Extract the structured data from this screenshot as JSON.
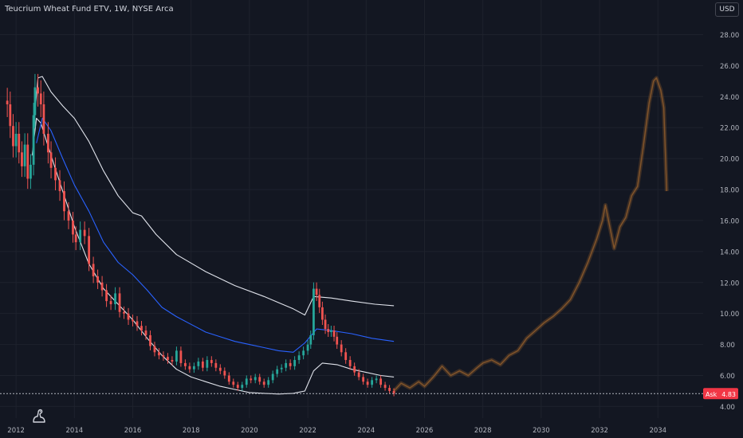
{
  "header": {
    "title": "Teucrium Wheat Fund ETV, 1W, NYSE Arca",
    "currency": "USD"
  },
  "colors": {
    "background": "#131722",
    "grid": "#1e222d",
    "axis_text": "#b2b5be",
    "up": "#26a69a",
    "down": "#ef5350",
    "white_ma": "#e0e3eb",
    "blue_ma": "#2962ff",
    "projection": "#8b5a2b",
    "price_line": "#b2b5be",
    "ask": "#f23645",
    "ask_label_text": "#ffffff"
  },
  "logo": {
    "icon": "tradingview-dino-icon"
  },
  "chart_data": {
    "type": "line",
    "title": "Teucrium Wheat Fund ETV, 1W, NYSE Arca",
    "xlabel": "",
    "ylabel": "",
    "xlim": [
      2011.45,
      2035.55
    ],
    "ylim": [
      3.25,
      29.0
    ],
    "x_ticks": [
      2012,
      2014,
      2016,
      2018,
      2020,
      2022,
      2024,
      2026,
      2028,
      2030,
      2032,
      2034
    ],
    "x_tick_labels": [
      "2012",
      "2014",
      "2016",
      "2018",
      "2020",
      "2022",
      "2024",
      "2026",
      "2028",
      "2030",
      "2032",
      "2034"
    ],
    "y_ticks": [
      4,
      6,
      8,
      10,
      12,
      14,
      16,
      18,
      20,
      22,
      24,
      26,
      28
    ],
    "y_tick_labels": [
      "4.00",
      "6.00",
      "8.00",
      "10.00",
      "12.00",
      "14.00",
      "16.00",
      "18.00",
      "20.00",
      "22.00",
      "24.00",
      "26.00",
      "28.00"
    ],
    "grid": true,
    "ask": {
      "label": "Ask",
      "value": 4.83,
      "value_label": "4.83"
    },
    "price_line": 4.83,
    "series": [
      {
        "style": "candles",
        "points": [
          [
            2011.7,
            23.5
          ],
          [
            2011.8,
            22.1
          ],
          [
            2011.9,
            20.8
          ],
          [
            2012.0,
            21.6
          ],
          [
            2012.1,
            20.4
          ],
          [
            2012.2,
            19.5
          ],
          [
            2012.3,
            20.9
          ],
          [
            2012.4,
            18.7
          ],
          [
            2012.5,
            19.6
          ],
          [
            2012.6,
            22.8
          ],
          [
            2012.65,
            24.6
          ],
          [
            2012.75,
            24.2
          ],
          [
            2012.85,
            23.5
          ],
          [
            2012.95,
            21.6
          ],
          [
            2013.1,
            20.4
          ],
          [
            2013.2,
            19.4
          ],
          [
            2013.35,
            18.6
          ],
          [
            2013.5,
            17.9
          ],
          [
            2013.65,
            16.6
          ],
          [
            2013.8,
            16.0
          ],
          [
            2013.95,
            15.1
          ],
          [
            2014.05,
            14.6
          ],
          [
            2014.2,
            15.4
          ],
          [
            2014.35,
            15.0
          ],
          [
            2014.5,
            13.2
          ],
          [
            2014.65,
            12.4
          ],
          [
            2014.8,
            12.0
          ],
          [
            2014.95,
            11.5
          ],
          [
            2015.1,
            10.8
          ],
          [
            2015.25,
            10.6
          ],
          [
            2015.4,
            11.3
          ],
          [
            2015.55,
            10.1
          ],
          [
            2015.7,
            10.0
          ],
          [
            2015.85,
            9.6
          ],
          [
            2016.0,
            9.5
          ],
          [
            2016.15,
            9.2
          ],
          [
            2016.3,
            8.9
          ],
          [
            2016.45,
            8.6
          ],
          [
            2016.6,
            7.9
          ],
          [
            2016.75,
            7.5
          ],
          [
            2016.9,
            7.3
          ],
          [
            2017.05,
            7.2
          ],
          [
            2017.2,
            7.0
          ],
          [
            2017.35,
            6.9
          ],
          [
            2017.5,
            7.6
          ],
          [
            2017.65,
            6.8
          ],
          [
            2017.8,
            6.6
          ],
          [
            2017.95,
            6.4
          ],
          [
            2018.1,
            6.6
          ],
          [
            2018.25,
            6.9
          ],
          [
            2018.4,
            6.5
          ],
          [
            2018.55,
            7.0
          ],
          [
            2018.7,
            6.8
          ],
          [
            2018.85,
            6.5
          ],
          [
            2019.0,
            6.3
          ],
          [
            2019.15,
            6.0
          ],
          [
            2019.3,
            5.6
          ],
          [
            2019.45,
            5.4
          ],
          [
            2019.6,
            5.2
          ],
          [
            2019.75,
            5.4
          ],
          [
            2019.9,
            5.8
          ],
          [
            2020.05,
            5.7
          ],
          [
            2020.2,
            5.9
          ],
          [
            2020.35,
            5.6
          ],
          [
            2020.5,
            5.4
          ],
          [
            2020.65,
            5.7
          ],
          [
            2020.8,
            6.1
          ],
          [
            2020.95,
            6.4
          ],
          [
            2021.1,
            6.5
          ],
          [
            2021.25,
            6.8
          ],
          [
            2021.4,
            6.6
          ],
          [
            2021.55,
            7.0
          ],
          [
            2021.7,
            7.3
          ],
          [
            2021.85,
            7.6
          ],
          [
            2022.0,
            8.0
          ],
          [
            2022.1,
            8.6
          ],
          [
            2022.2,
            11.6
          ],
          [
            2022.3,
            11.2
          ],
          [
            2022.4,
            10.4
          ],
          [
            2022.5,
            9.6
          ],
          [
            2022.6,
            9.0
          ],
          [
            2022.7,
            8.8
          ],
          [
            2022.8,
            8.9
          ],
          [
            2022.9,
            8.5
          ],
          [
            2023.0,
            8.0
          ],
          [
            2023.15,
            7.5
          ],
          [
            2023.3,
            7.0
          ],
          [
            2023.45,
            6.6
          ],
          [
            2023.6,
            6.2
          ],
          [
            2023.75,
            5.9
          ],
          [
            2023.9,
            5.6
          ],
          [
            2024.05,
            5.4
          ],
          [
            2024.2,
            5.7
          ],
          [
            2024.35,
            5.8
          ],
          [
            2024.5,
            5.4
          ],
          [
            2024.65,
            5.2
          ],
          [
            2024.8,
            5.0
          ],
          [
            2024.95,
            4.83
          ]
        ]
      },
      {
        "style": "white_ma",
        "points": [
          [
            2012.6,
            22.0
          ],
          [
            2012.75,
            25.2
          ],
          [
            2012.9,
            25.3
          ],
          [
            2013.2,
            24.3
          ],
          [
            2013.6,
            23.4
          ],
          [
            2014.0,
            22.6
          ],
          [
            2014.5,
            21.1
          ],
          [
            2015.0,
            19.2
          ],
          [
            2015.5,
            17.6
          ],
          [
            2016.0,
            16.5
          ],
          [
            2016.3,
            16.3
          ],
          [
            2016.8,
            15.1
          ],
          [
            2017.5,
            13.8
          ],
          [
            2018.5,
            12.7
          ],
          [
            2019.5,
            11.8
          ],
          [
            2020.5,
            11.1
          ],
          [
            2021.5,
            10.3
          ],
          [
            2021.9,
            9.9
          ],
          [
            2022.2,
            11.1
          ],
          [
            2022.8,
            11.0
          ],
          [
            2023.5,
            10.8
          ],
          [
            2024.3,
            10.6
          ],
          [
            2024.95,
            10.5
          ]
        ]
      },
      {
        "style": "blue_ma",
        "points": [
          [
            2012.7,
            21.0
          ],
          [
            2012.9,
            22.6
          ],
          [
            2013.2,
            21.8
          ],
          [
            2013.6,
            20.0
          ],
          [
            2014.0,
            18.3
          ],
          [
            2014.5,
            16.6
          ],
          [
            2015.0,
            14.6
          ],
          [
            2015.5,
            13.3
          ],
          [
            2016.0,
            12.5
          ],
          [
            2016.5,
            11.5
          ],
          [
            2017.0,
            10.4
          ],
          [
            2017.5,
            9.8
          ],
          [
            2018.0,
            9.3
          ],
          [
            2018.5,
            8.8
          ],
          [
            2019.0,
            8.5
          ],
          [
            2019.5,
            8.2
          ],
          [
            2020.0,
            8.0
          ],
          [
            2020.5,
            7.8
          ],
          [
            2021.0,
            7.6
          ],
          [
            2021.5,
            7.5
          ],
          [
            2021.9,
            8.1
          ],
          [
            2022.3,
            9.0
          ],
          [
            2022.8,
            8.9
          ],
          [
            2023.5,
            8.7
          ],
          [
            2024.2,
            8.4
          ],
          [
            2024.95,
            8.2
          ]
        ]
      },
      {
        "style": "white_band_lower",
        "points": [
          [
            2012.55,
            20.2
          ],
          [
            2012.7,
            22.6
          ],
          [
            2012.85,
            22.3
          ],
          [
            2013.2,
            20.2
          ],
          [
            2013.6,
            17.9
          ],
          [
            2014.0,
            15.6
          ],
          [
            2014.5,
            13.2
          ],
          [
            2015.0,
            11.6
          ],
          [
            2015.5,
            10.6
          ],
          [
            2016.0,
            9.6
          ],
          [
            2016.5,
            8.4
          ],
          [
            2017.0,
            7.3
          ],
          [
            2017.5,
            6.4
          ],
          [
            2018.0,
            5.9
          ],
          [
            2018.5,
            5.6
          ],
          [
            2019.0,
            5.3
          ],
          [
            2019.5,
            5.1
          ],
          [
            2020.0,
            4.9
          ],
          [
            2020.5,
            4.85
          ],
          [
            2021.0,
            4.8
          ],
          [
            2021.5,
            4.85
          ],
          [
            2021.9,
            5.0
          ],
          [
            2022.2,
            6.3
          ],
          [
            2022.5,
            6.8
          ],
          [
            2023.0,
            6.7
          ],
          [
            2023.5,
            6.4
          ],
          [
            2024.0,
            6.2
          ],
          [
            2024.5,
            6.0
          ],
          [
            2024.95,
            5.9
          ]
        ]
      },
      {
        "style": "projection",
        "points": [
          [
            2024.95,
            5.0
          ],
          [
            2025.2,
            5.5
          ],
          [
            2025.5,
            5.2
          ],
          [
            2025.8,
            5.6
          ],
          [
            2026.0,
            5.3
          ],
          [
            2026.3,
            5.9
          ],
          [
            2026.6,
            6.6
          ],
          [
            2026.9,
            6.0
          ],
          [
            2027.2,
            6.3
          ],
          [
            2027.5,
            6.0
          ],
          [
            2027.8,
            6.5
          ],
          [
            2028.0,
            6.8
          ],
          [
            2028.3,
            7.0
          ],
          [
            2028.6,
            6.7
          ],
          [
            2028.9,
            7.3
          ],
          [
            2029.2,
            7.6
          ],
          [
            2029.5,
            8.4
          ],
          [
            2029.8,
            8.9
          ],
          [
            2030.1,
            9.4
          ],
          [
            2030.4,
            9.8
          ],
          [
            2030.7,
            10.3
          ],
          [
            2031.0,
            10.9
          ],
          [
            2031.3,
            12.0
          ],
          [
            2031.6,
            13.3
          ],
          [
            2031.9,
            14.8
          ],
          [
            2032.1,
            16.0
          ],
          [
            2032.2,
            17.0
          ],
          [
            2032.35,
            15.6
          ],
          [
            2032.5,
            14.2
          ],
          [
            2032.7,
            15.6
          ],
          [
            2032.9,
            16.2
          ],
          [
            2033.1,
            17.6
          ],
          [
            2033.3,
            18.2
          ],
          [
            2033.5,
            20.8
          ],
          [
            2033.7,
            23.6
          ],
          [
            2033.85,
            25.0
          ],
          [
            2033.95,
            25.2
          ],
          [
            2034.1,
            24.4
          ],
          [
            2034.2,
            23.3
          ],
          [
            2034.3,
            17.9
          ]
        ]
      }
    ]
  }
}
